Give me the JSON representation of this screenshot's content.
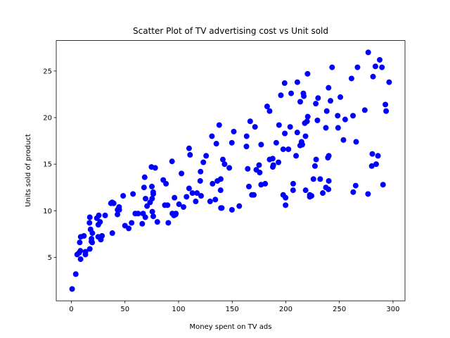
{
  "chart_data": {
    "type": "scatter",
    "title": "Scatter Plot of TV advertising cost vs Unit sold",
    "x_label": "Money spent on TV ads",
    "y_label": "Units sold of product",
    "color": "#0000ff",
    "x": [
      230.1,
      44.5,
      17.2,
      151.5,
      180.8,
      8.7,
      57.5,
      120.2,
      8.6,
      199.8,
      66.1,
      214.7,
      23.8,
      97.5,
      204.1,
      195.4,
      67.8,
      281.4,
      69.2,
      147.3,
      218.4,
      237.4,
      13.2,
      228.3,
      62.3,
      262.9,
      142.9,
      240.1,
      248.8,
      70.6,
      292.9,
      112.9,
      97.2,
      265.6,
      95.7,
      290.7,
      266.9,
      74.7,
      43.1,
      228,
      202.5,
      177,
      293.6,
      206.9,
      25.1,
      175.1,
      89.7,
      239.9,
      227.2,
      66.9,
      199.8,
      100.4,
      216.4,
      182.6,
      262.7,
      198.9,
      7.3,
      136.2,
      210.8,
      210.7,
      53.5,
      261.3,
      239.3,
      102.7,
      131.1,
      69,
      31.5,
      139.3,
      237.4,
      216.8,
      199.1,
      109.8,
      26.8,
      129.4,
      213.4,
      16.9,
      27.5,
      120.5,
      5.4,
      116,
      76.4,
      239.8,
      75.3,
      68.4,
      213.5,
      193.2,
      76.3,
      110.7,
      88.3,
      109.8,
      134.3,
      28.6,
      217.7,
      250.9,
      107.4,
      163.3,
      197.6,
      184.9,
      289.7,
      135.2,
      222.4,
      296.4,
      280.2,
      187.9,
      238.2,
      137.9,
      25,
      90.4,
      13.1,
      255.4,
      225.8,
      241.7,
      175.7,
      209.6,
      78.2,
      75.1,
      139.2,
      76.4,
      125.7,
      19.4,
      141.3,
      18.8,
      224,
      123.1,
      229.5,
      87.2,
      7.8,
      80.2,
      220.3,
      59.6,
      0.7,
      265.2,
      8.4,
      219.8,
      36.9,
      48.3,
      25.6,
      273.7,
      43,
      184.9,
      73.4,
      193.7,
      220.5,
      104.6,
      96.2,
      140.3,
      240.1,
      243.2,
      38,
      44.7,
      280.7,
      121,
      197.6,
      171.3,
      187.8,
      4.1,
      93.9,
      149.8,
      11.7,
      131.7,
      172.5,
      85.7,
      188.4,
      163.5,
      117.2,
      234.5,
      17.9,
      206.8,
      215.4,
      284.3,
      50,
      164.5,
      19.6,
      168.4,
      222.4,
      276.9,
      248.4,
      170.2,
      276.7,
      165.6,
      156.6,
      218.5,
      56.2,
      287.6,
      253.8,
      205,
      139.5,
      191.1,
      286,
      18.7,
      39.5,
      75.5,
      17.2,
      166.8,
      149.7,
      38.2,
      94.2,
      177,
      283.6,
      232.1
    ],
    "values": [
      22.1,
      10.4,
      9.3,
      18.5,
      12.9,
      7.2,
      11.8,
      13.2,
      4.8,
      10.6,
      8.6,
      17.4,
      9.2,
      9.7,
      19,
      22.4,
      12.5,
      24.4,
      11.3,
      14.6,
      18,
      12.5,
      5.6,
      15.5,
      9.7,
      12,
      15,
      15.9,
      18.9,
      10.5,
      21.4,
      11.9,
      9.6,
      17.4,
      9.5,
      12.8,
      25.4,
      14.7,
      10.1,
      21.5,
      16.6,
      17.1,
      20.7,
      12.9,
      8.5,
      14.9,
      10.6,
      23.2,
      14.8,
      9.7,
      11.4,
      10.7,
      22.6,
      21.2,
      20.2,
      23.7,
      5.5,
      13.2,
      23.8,
      18.4,
      8.1,
      24.2,
      15.7,
      14,
      18,
      9.3,
      9.5,
      13.4,
      18.9,
      22.3,
      18.3,
      12.4,
      8.8,
      11,
      17,
      8.7,
      6.9,
      14.2,
      5.3,
      11,
      11.8,
      12.3,
      11.3,
      13.6,
      21.7,
      15.2,
      12,
      16,
      12.9,
      16.7,
      11.2,
      7.3,
      19.4,
      22.2,
      11.5,
      16.9,
      11.7,
      15.5,
      25.4,
      17.2,
      11.7,
      23.8,
      14.8,
      14.7,
      20.7,
      19.2,
      7.2,
      8.7,
      5.3,
      19.8,
      13.4,
      21.8,
      14.1,
      15.9,
      14.6,
      12.6,
      12.2,
      9.4,
      15.9,
      6.6,
      15.5,
      7,
      11.6,
      15.2,
      19.7,
      10.6,
      6.6,
      8.8,
      24.7,
      9.7,
      1.6,
      12.7,
      5.7,
      19.6,
      10.8,
      11.6,
      9.5,
      20.8,
      9.6,
      20.7,
      10.9,
      19.2,
      20.1,
      10.4,
      11.4,
      10.3,
      13.2,
      25.4,
      10.9,
      10.1,
      16.1,
      11.6,
      16.6,
      19,
      15.6,
      3.2,
      15.3,
      10.1,
      7.3,
      12.9,
      14.4,
      13.3,
      14.9,
      18,
      11.9,
      11.9,
      8,
      12.2,
      17.1,
      15,
      8.4,
      14.5,
      7.6,
      11.7,
      11.5,
      27,
      20.2,
      11.7,
      11.8,
      12.6,
      10.5,
      12.2,
      8.7,
      26.2,
      17.6,
      22.6,
      10.3,
      17.3,
      15.9,
      6.7,
      10.8,
      9.9,
      5.9,
      19.6,
      17.3,
      7.6,
      9.7,
      12.8,
      25.5,
      13.4
    ],
    "xlim": [
      -14.1,
      311.2
    ],
    "ylim": [
      0.33,
      28.27
    ],
    "xticks": [
      0,
      50,
      100,
      150,
      200,
      250,
      300
    ],
    "yticks": [
      5,
      10,
      15,
      20,
      25
    ]
  }
}
